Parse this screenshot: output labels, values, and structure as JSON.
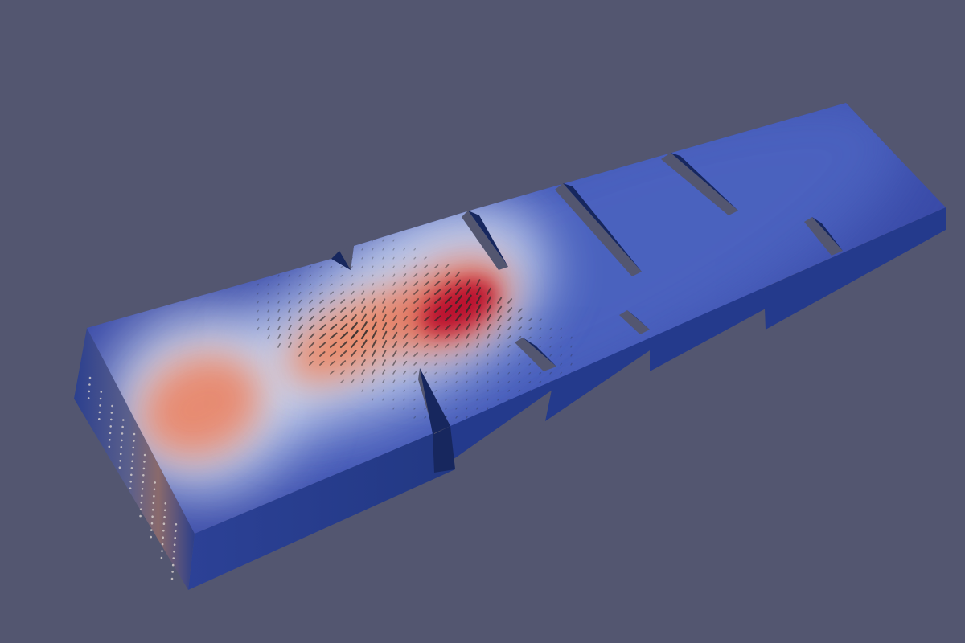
{
  "viewport": {
    "background_color": "#535670",
    "colormap": "cool-to-warm",
    "colormap_low": "#3a4ba8",
    "colormap_mid": "#dbe2f2",
    "colormap_high": "#b40426",
    "side_face_color": "#243a8c",
    "shadow_face_color": "#17275e",
    "glyph_color": "#2a2a2a",
    "visible_text": []
  }
}
